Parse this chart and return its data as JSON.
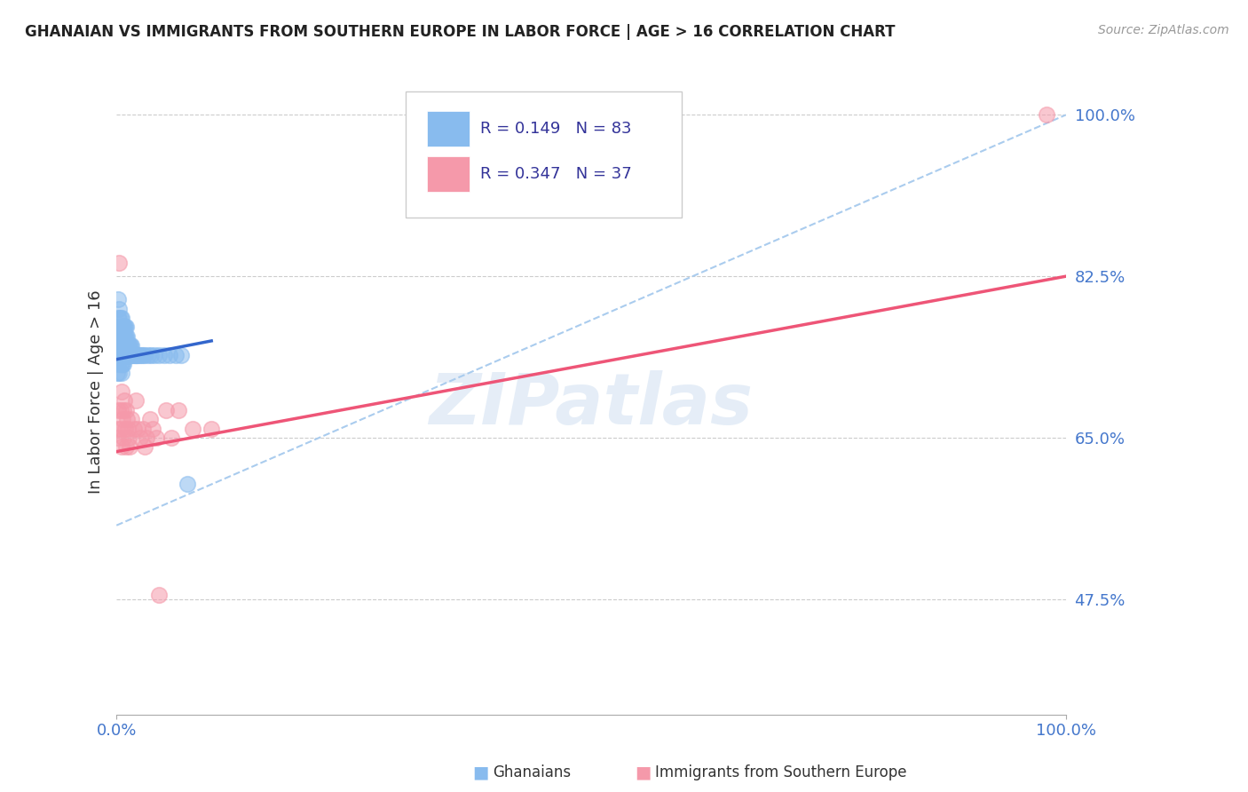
{
  "title": "GHANAIAN VS IMMIGRANTS FROM SOUTHERN EUROPE IN LABOR FORCE | AGE > 16 CORRELATION CHART",
  "source": "Source: ZipAtlas.com",
  "ylabel": "In Labor Force | Age > 16",
  "xlim": [
    0.0,
    1.0
  ],
  "ylim": [
    0.35,
    1.05
  ],
  "yticks": [
    0.475,
    0.65,
    0.825,
    1.0
  ],
  "ytick_labels": [
    "47.5%",
    "65.0%",
    "82.5%",
    "100.0%"
  ],
  "xtick_labels": [
    "0.0%",
    "100.0%"
  ],
  "xticks": [
    0.0,
    1.0
  ],
  "r_ghanaian": 0.149,
  "n_ghanaian": 83,
  "r_southern_europe": 0.347,
  "n_southern_europe": 37,
  "color_ghanaian": "#88BBEE",
  "color_southern_europe": "#F599AA",
  "color_ghanaian_line": "#3366CC",
  "color_southern_europe_line": "#EE5577",
  "color_dashed": "#AACCEE",
  "watermark_text": "ZIPatlas",
  "tick_color": "#4477CC",
  "grid_color": "#CCCCCC",
  "blue_line_x0": 0.0,
  "blue_line_y0": 0.735,
  "blue_line_x1": 0.1,
  "blue_line_y1": 0.755,
  "pink_line_x0": 0.0,
  "pink_line_y0": 0.635,
  "pink_line_x1": 1.0,
  "pink_line_y1": 0.825,
  "dash_line_x0": 0.0,
  "dash_line_y0": 0.555,
  "dash_line_x1": 1.0,
  "dash_line_y1": 1.0,
  "ghanaians_x": [
    0.001,
    0.001,
    0.001,
    0.002,
    0.002,
    0.002,
    0.002,
    0.002,
    0.002,
    0.003,
    0.003,
    0.003,
    0.003,
    0.003,
    0.003,
    0.003,
    0.004,
    0.004,
    0.004,
    0.004,
    0.004,
    0.004,
    0.005,
    0.005,
    0.005,
    0.005,
    0.005,
    0.005,
    0.005,
    0.006,
    0.006,
    0.006,
    0.006,
    0.006,
    0.007,
    0.007,
    0.007,
    0.007,
    0.007,
    0.008,
    0.008,
    0.008,
    0.008,
    0.009,
    0.009,
    0.009,
    0.009,
    0.01,
    0.01,
    0.01,
    0.01,
    0.011,
    0.011,
    0.011,
    0.012,
    0.012,
    0.013,
    0.013,
    0.014,
    0.014,
    0.015,
    0.015,
    0.016,
    0.016,
    0.017,
    0.018,
    0.019,
    0.02,
    0.021,
    0.022,
    0.024,
    0.026,
    0.028,
    0.03,
    0.033,
    0.036,
    0.04,
    0.045,
    0.05,
    0.056,
    0.062,
    0.068,
    0.075
  ],
  "ghanaians_y": [
    0.72,
    0.74,
    0.76,
    0.73,
    0.75,
    0.77,
    0.76,
    0.78,
    0.8,
    0.72,
    0.74,
    0.75,
    0.76,
    0.77,
    0.78,
    0.79,
    0.73,
    0.74,
    0.75,
    0.76,
    0.77,
    0.78,
    0.72,
    0.73,
    0.74,
    0.75,
    0.76,
    0.77,
    0.78,
    0.73,
    0.74,
    0.75,
    0.76,
    0.77,
    0.73,
    0.74,
    0.75,
    0.76,
    0.77,
    0.74,
    0.75,
    0.76,
    0.77,
    0.74,
    0.75,
    0.76,
    0.77,
    0.74,
    0.75,
    0.76,
    0.77,
    0.74,
    0.75,
    0.76,
    0.74,
    0.75,
    0.74,
    0.75,
    0.74,
    0.75,
    0.74,
    0.75,
    0.74,
    0.75,
    0.74,
    0.74,
    0.74,
    0.74,
    0.74,
    0.74,
    0.74,
    0.74,
    0.74,
    0.74,
    0.74,
    0.74,
    0.74,
    0.74,
    0.74,
    0.74,
    0.74,
    0.74,
    0.6
  ],
  "southern_europe_x": [
    0.001,
    0.002,
    0.002,
    0.003,
    0.004,
    0.004,
    0.005,
    0.005,
    0.006,
    0.007,
    0.007,
    0.008,
    0.009,
    0.01,
    0.01,
    0.011,
    0.012,
    0.013,
    0.014,
    0.016,
    0.018,
    0.02,
    0.022,
    0.025,
    0.028,
    0.03,
    0.032,
    0.035,
    0.038,
    0.042,
    0.045,
    0.052,
    0.058,
    0.065,
    0.08,
    0.1,
    0.98
  ],
  "southern_europe_y": [
    0.66,
    0.65,
    0.68,
    0.84,
    0.66,
    0.68,
    0.64,
    0.7,
    0.67,
    0.65,
    0.68,
    0.69,
    0.66,
    0.64,
    0.68,
    0.67,
    0.66,
    0.65,
    0.64,
    0.67,
    0.66,
    0.69,
    0.66,
    0.65,
    0.66,
    0.64,
    0.65,
    0.67,
    0.66,
    0.65,
    0.48,
    0.68,
    0.65,
    0.68,
    0.66,
    0.66,
    1.0
  ]
}
